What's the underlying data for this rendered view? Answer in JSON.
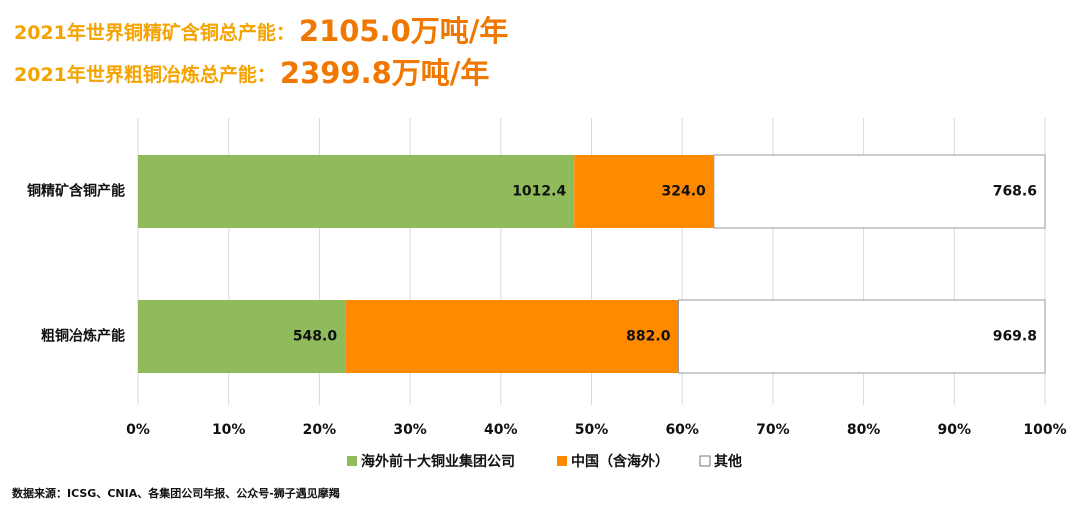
{
  "chart_data": {
    "type": "bar",
    "orientation": "horizontal",
    "stack": "percent",
    "headlines": [
      {
        "label": "2021年世界铜精矿含铜总产能：",
        "value": "2105.0万吨/年"
      },
      {
        "label": "2021年世界粗铜冶炼总产能：",
        "value": "2399.8万吨/年"
      }
    ],
    "categories": [
      "铜精矿含铜产能",
      "粗铜冶炼产能"
    ],
    "series": [
      {
        "name": "海外前十大铜业集团公司",
        "color": "#8fbb5b",
        "values": [
          1012.4,
          548.0
        ],
        "value_labels": [
          "1012.4",
          "548.0"
        ]
      },
      {
        "name": "中国（含海外）",
        "color": "#ff8a00",
        "values": [
          324.0,
          882.0
        ],
        "value_labels": [
          "324.0",
          "882.0"
        ]
      },
      {
        "name": "其他",
        "color": "#ffffff",
        "values": [
          768.6,
          969.8
        ],
        "value_labels": [
          "768.6",
          "969.8"
        ]
      }
    ],
    "xlim": [
      0,
      100
    ],
    "xticks": [
      {
        "value": 0,
        "label": "0%"
      },
      {
        "value": 10,
        "label": "10%"
      },
      {
        "value": 20,
        "label": "20%"
      },
      {
        "value": 30,
        "label": "30%"
      },
      {
        "value": 40,
        "label": "40%"
      },
      {
        "value": 50,
        "label": "50%"
      },
      {
        "value": 60,
        "label": "60%"
      },
      {
        "value": 70,
        "label": "70%"
      },
      {
        "value": 80,
        "label": "80%"
      },
      {
        "value": 90,
        "label": "90%"
      },
      {
        "value": 100,
        "label": "100%"
      }
    ],
    "grid": true,
    "legend": "bottom",
    "source": "数据来源：ICSG、CNIA、各集团公司年报、公众号-狮子遇见摩羯"
  }
}
